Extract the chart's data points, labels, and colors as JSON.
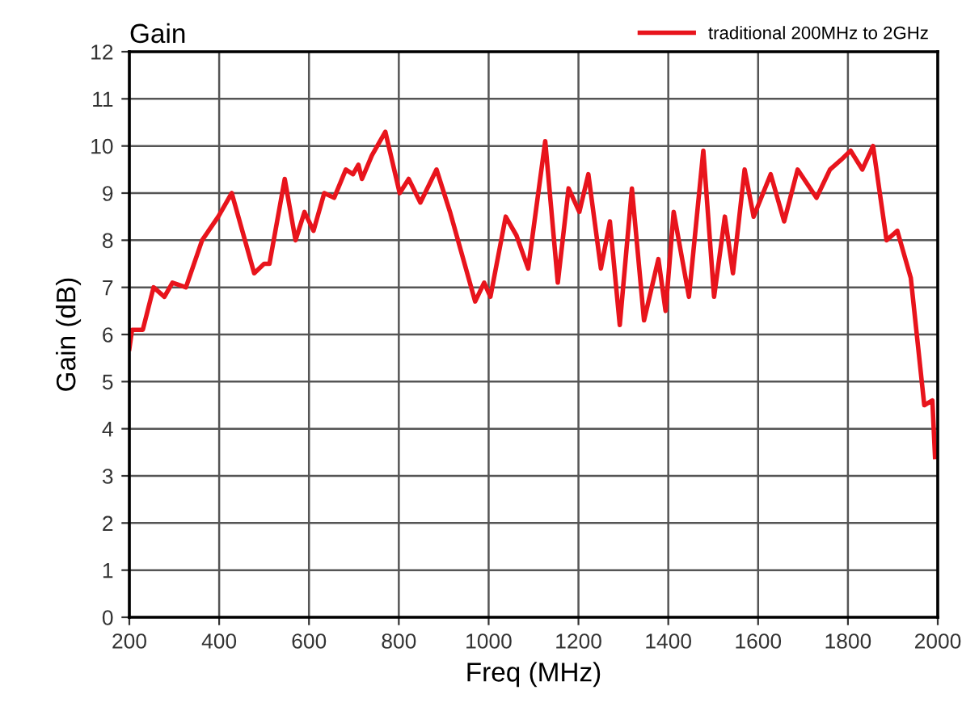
{
  "chart_data": {
    "type": "line",
    "title": "Gain",
    "xlabel": "Freq (MHz)",
    "ylabel": "Gain (dB)",
    "xlim": [
      200,
      2000
    ],
    "ylim": [
      0,
      12
    ],
    "xticks": [
      200,
      400,
      600,
      800,
      1000,
      1200,
      1400,
      1600,
      1800,
      2000
    ],
    "yticks": [
      0,
      1,
      2,
      3,
      4,
      5,
      6,
      7,
      8,
      9,
      10,
      11,
      12
    ],
    "grid": true,
    "legend": "top right",
    "marker": "none",
    "line_style": "solid",
    "series": [
      {
        "name": "traditional 200MHz to 2GHz",
        "color": "#e8141c",
        "x": [
          200,
          206,
          230,
          254,
          278,
          296,
          326,
          362,
          398,
          428,
          478,
          500,
          512,
          546,
          570,
          590,
          610,
          634,
          656,
          682,
          698,
          710,
          718,
          740,
          770,
          802,
          822,
          848,
          884,
          914,
          970,
          990,
          1004,
          1038,
          1062,
          1088,
          1126,
          1154,
          1178,
          1202,
          1222,
          1250,
          1270,
          1292,
          1319,
          1346,
          1378,
          1394,
          1412,
          1446,
          1478,
          1502,
          1526,
          1544,
          1570,
          1590,
          1628,
          1658,
          1688,
          1730,
          1760,
          1784,
          1806,
          1832,
          1856,
          1886,
          1910,
          1940,
          1970,
          1988,
          1994
        ],
        "values": [
          5.7,
          6.1,
          6.1,
          7.0,
          6.8,
          7.1,
          7.0,
          8.0,
          8.5,
          9.0,
          7.3,
          7.5,
          7.5,
          9.3,
          8.0,
          8.6,
          8.2,
          9.0,
          8.9,
          9.5,
          9.4,
          9.6,
          9.3,
          9.8,
          10.3,
          9.0,
          9.3,
          8.8,
          9.5,
          8.6,
          6.7,
          7.1,
          6.8,
          8.5,
          8.1,
          7.4,
          10.1,
          7.1,
          9.1,
          8.6,
          9.4,
          7.4,
          8.4,
          6.2,
          9.1,
          6.3,
          7.6,
          6.5,
          8.6,
          6.8,
          9.9,
          6.8,
          8.5,
          7.3,
          9.5,
          8.5,
          9.4,
          8.4,
          9.5,
          8.9,
          9.5,
          9.7,
          9.9,
          9.5,
          10.0,
          8.0,
          8.2,
          7.2,
          4.5,
          4.6,
          3.4
        ]
      }
    ]
  }
}
